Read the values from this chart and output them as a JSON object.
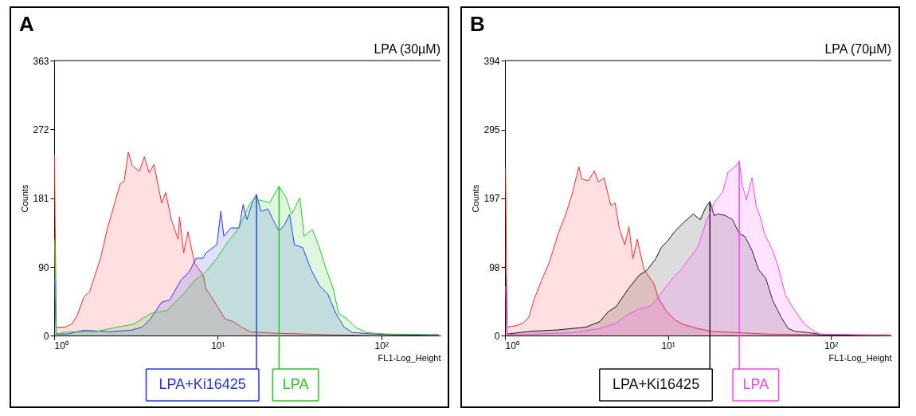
{
  "chart_data": [
    {
      "type": "area",
      "title": "A",
      "subtitle": "LPA (30µM)",
      "xlabel": "FL1-Log_Height",
      "ylabel": "Counts",
      "log": "x",
      "xlim": [
        1,
        230
      ],
      "xticks": [
        {
          "value": 1,
          "label": "10⁰"
        },
        {
          "value": 10,
          "label": "10¹"
        },
        {
          "value": 100,
          "label": "10²"
        }
      ],
      "ylim": [
        0,
        363
      ],
      "legend": "bottom",
      "yticks": [
        0,
        90,
        181,
        272,
        363
      ],
      "series": [
        {
          "color": "#ff2a2a",
          "x": [
            1.004,
            1.03,
            1.16,
            1.28,
            1.38,
            1.52,
            1.65,
            1.78,
            1.92,
            2.12,
            2.29,
            2.53,
            2.68,
            2.84,
            3.01,
            3.32,
            3.56,
            3.81,
            4.08,
            4.54,
            4.81,
            5.2,
            5.73,
            5.84,
            6.19,
            6.57,
            7.24,
            8.14,
            8.46,
            9.15,
            10.1,
            11.1,
            12.5,
            14.0,
            15.8,
            18.4,
            22.4,
            33.1,
            48.8,
            87.6,
            223
          ],
          "values": [
            239,
            11,
            11,
            15,
            26,
            51,
            58,
            80,
            102,
            142,
            167,
            200,
            204,
            242,
            224,
            217,
            236,
            215,
            226,
            175,
            189,
            153,
            127,
            157,
            109,
            137,
            95,
            80,
            62,
            51,
            36,
            22,
            18,
            11,
            5,
            4,
            3,
            2,
            1,
            0,
            1
          ]
        },
        {
          "name": "LPA+Ki16425",
          "color": "#2233ff",
          "x": [
            1.004,
            1.03,
            1.21,
            1.52,
            2.16,
            2.95,
            3.45,
            3.88,
            4.54,
            5.09,
            5.95,
            6.69,
            7.39,
            8.14,
            8.46,
            9.88,
            10.45,
            10.9,
            12.0,
            13.5,
            14.3,
            15.1,
            16.4,
            17.25,
            18.4,
            20.3,
            22.0,
            23.7,
            25.6,
            27.5,
            29.4,
            33.1,
            37.2,
            41.8,
            47.0,
            52.8,
            59.3,
            66.7,
            87.6,
            129,
            223
          ],
          "values": [
            76,
            2,
            2,
            7,
            5,
            7,
            11,
            22,
            44,
            47,
            73,
            84,
            102,
            102,
            109,
            120,
            164,
            131,
            142,
            142,
            173,
            153,
            178,
            186,
            164,
            167,
            151,
            138,
            146,
            160,
            120,
            116,
            87,
            66,
            55,
            29,
            11,
            4,
            2,
            1,
            0
          ]
        },
        {
          "name": "LPA",
          "color": "#22cc22",
          "x": [
            1.004,
            1.03,
            1.21,
            1.78,
            2.43,
            3.07,
            3.88,
            4.9,
            6.19,
            7.24,
            8.46,
            9.88,
            11.55,
            13.5,
            15.8,
            16.7,
            18.8,
            20.7,
            23.7,
            26.2,
            28.3,
            31.8,
            33.7,
            37.9,
            41.8,
            46.1,
            50.8,
            54.9,
            61.7,
            69.3,
            81.0,
            106,
            223
          ],
          "values": [
            127,
            2,
            5,
            5,
            11,
            15,
            29,
            33,
            55,
            73,
            84,
            102,
            124,
            142,
            175,
            180,
            178,
            175,
            197,
            182,
            160,
            182,
            131,
            140,
            116,
            87,
            62,
            29,
            22,
            11,
            4,
            2,
            1
          ]
        }
      ]
    },
    {
      "type": "area",
      "title": "B",
      "subtitle": "LPA (70µM)",
      "xlabel": "FL1-Log_Height",
      "ylabel": "Counts",
      "log": "x",
      "xlim": [
        1,
        235
      ],
      "xticks": [
        {
          "value": 1,
          "label": "10⁰"
        },
        {
          "value": 10,
          "label": "10¹"
        },
        {
          "value": 100,
          "label": "10²"
        }
      ],
      "ylim": [
        0,
        394
      ],
      "legend": "bottom",
      "yticks": [
        0,
        98,
        197,
        295,
        394
      ],
      "series": [
        {
          "color": "#ff2a2a",
          "x": [
            1.008,
            1.03,
            1.17,
            1.29,
            1.4,
            1.51,
            1.67,
            1.88,
            2.12,
            2.33,
            2.58,
            2.84,
            2.96,
            3.26,
            3.53,
            3.75,
            4.05,
            4.47,
            4.74,
            5.03,
            5.44,
            5.76,
            6.1,
            6.48,
            7.15,
            8.21,
            8.72,
            9.84,
            11.1,
            12.4,
            15.2,
            18.5,
            27.4,
            40.6,
            89.4,
            230
          ],
          "values": [
            240,
            12,
            14,
            18,
            26,
            52,
            78,
            106,
            146,
            170,
            202,
            242,
            224,
            222,
            236,
            220,
            226,
            186,
            190,
            154,
            130,
            156,
            110,
            138,
            94,
            74,
            54,
            34,
            22,
            16,
            10,
            6,
            4,
            2,
            1,
            1
          ]
        },
        {
          "name": "LPA+Ki16425",
          "color": "#111111",
          "x": [
            1.008,
            1.03,
            1.43,
            2.12,
            3.14,
            3.82,
            4.3,
            4.84,
            5.67,
            6.64,
            7.47,
            8.41,
            9.1,
            10.0,
            11.1,
            12.5,
            14.3,
            15.8,
            17.1,
            18.1,
            19.2,
            20.4,
            22.5,
            24.9,
            27.4,
            29.7,
            32.8,
            36.1,
            39.9,
            44.0,
            49.6,
            54.7,
            60.4,
            73.5,
            89.5,
            230
          ],
          "values": [
            86,
            2,
            6,
            8,
            12,
            20,
            34,
            42,
            66,
            86,
            94,
            110,
            126,
            136,
            150,
            162,
            174,
            166,
            184,
            192,
            172,
            174,
            172,
            166,
            146,
            142,
            122,
            94,
            82,
            50,
            26,
            10,
            6,
            4,
            1,
            0
          ]
        },
        {
          "name": "LPA",
          "color": "#ff44ff",
          "x": [
            1.008,
            1.03,
            1.43,
            2.58,
            3.82,
            4.84,
            5.67,
            6.64,
            7.77,
            8.41,
            9.46,
            10.7,
            12.0,
            13.5,
            15.2,
            17.1,
            19.2,
            21.7,
            23.4,
            25.9,
            27.4,
            28.5,
            30.3,
            32.8,
            34.8,
            36.9,
            39.1,
            44.0,
            47.6,
            52.6,
            59.2,
            68.0,
            76.5,
            86.1,
            230
          ],
          "values": [
            70,
            1,
            2,
            4,
            10,
            18,
            30,
            38,
            42,
            50,
            66,
            82,
            94,
            110,
            126,
            162,
            190,
            206,
            234,
            242,
            250,
            218,
            194,
            226,
            186,
            170,
            146,
            122,
            98,
            58,
            38,
            18,
            8,
            2,
            0
          ]
        }
      ]
    }
  ]
}
